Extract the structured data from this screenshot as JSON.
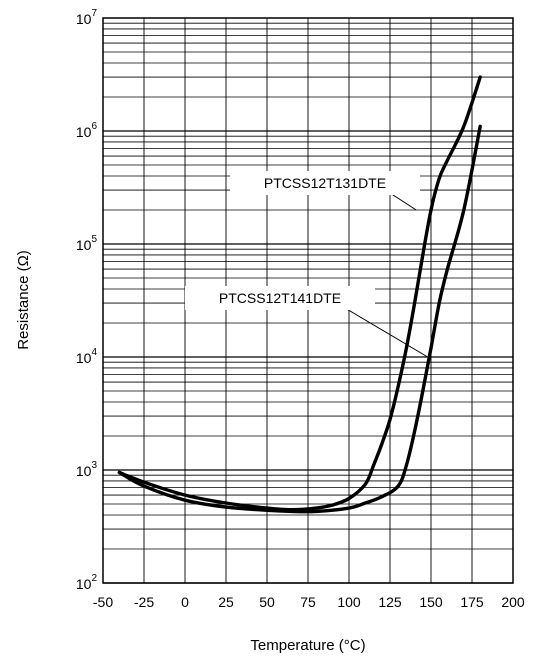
{
  "chart_data": {
    "type": "line",
    "title": "",
    "xlabel": "Temperature (°C)",
    "ylabel": "Resistance (Ω)",
    "xlim": [
      -50,
      200
    ],
    "ylim": [
      100,
      10000000
    ],
    "y_scale": "log",
    "grid": true,
    "x_ticks": [
      -50,
      -25,
      0,
      25,
      50,
      75,
      100,
      125,
      150,
      175,
      200
    ],
    "x_tick_labels": [
      "-50",
      "-25",
      "0",
      "25",
      "50",
      "75",
      "100",
      "125",
      "150",
      "175",
      "200"
    ],
    "y_ticks": [
      {
        "value": 100,
        "base": "10",
        "exp": "2"
      },
      {
        "value": 1000,
        "base": "10",
        "exp": "3"
      },
      {
        "value": 10000,
        "base": "10",
        "exp": "4"
      },
      {
        "value": 100000,
        "base": "10",
        "exp": "5"
      },
      {
        "value": 1000000,
        "base": "10",
        "exp": "6"
      },
      {
        "value": 10000000,
        "base": "10",
        "exp": "7"
      }
    ],
    "series": [
      {
        "name": "PTCSS12T131DTE",
        "x": [
          -40,
          -25,
          0,
          25,
          50,
          65,
          80,
          90,
          100,
          110,
          115,
          120,
          125,
          130,
          135,
          140,
          145,
          150,
          155,
          160,
          170,
          180
        ],
        "y": [
          950,
          780,
          600,
          510,
          460,
          445,
          460,
          490,
          560,
          750,
          1100,
          1700,
          2800,
          5500,
          12000,
          30000,
          80000,
          200000,
          380000,
          550000,
          1100000,
          3000000
        ]
      },
      {
        "name": "PTCSS12T141DTE",
        "x": [
          -40,
          -25,
          0,
          25,
          50,
          65,
          80,
          100,
          110,
          120,
          130,
          135,
          140,
          145,
          150,
          155,
          160,
          170,
          180
        ],
        "y": [
          950,
          720,
          540,
          470,
          440,
          430,
          430,
          460,
          510,
          580,
          720,
          1100,
          2200,
          5000,
          12000,
          30000,
          60000,
          200000,
          1100000
        ]
      }
    ],
    "annotations": [
      {
        "text": "PTCSS12T131DTE",
        "series": "PTCSS12T131DTE",
        "x": 141,
        "y": 200000
      },
      {
        "text": "PTCSS12T141DTE",
        "series": "PTCSS12T141DTE",
        "x": 148,
        "y": 10000
      }
    ]
  },
  "style": {
    "line_color": "#000000",
    "grid_color": "#000000",
    "background": "#ffffff"
  }
}
